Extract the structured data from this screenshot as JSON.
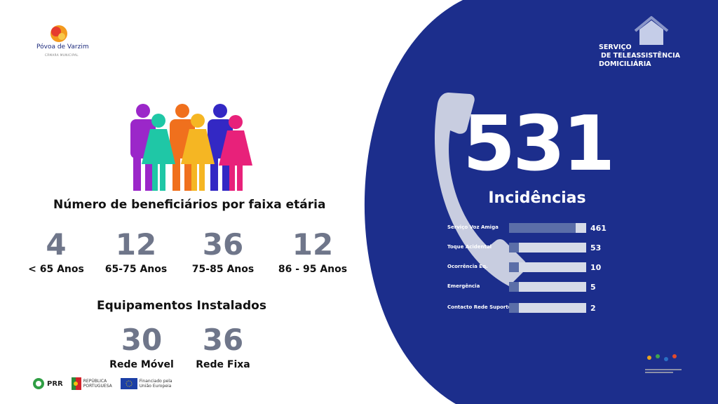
{
  "logo": {
    "name": "Póvoa de Varzim",
    "subtitle": "CÂMARA MUNICIPAL"
  },
  "service": {
    "line1": "SERVIÇO",
    "line2": "DE TELEASSISTÊNCIA",
    "line3": "DOMICILIÁRIA"
  },
  "age_section": {
    "title": "Número de beneficiários por faixa etária",
    "items": [
      {
        "value": "4",
        "label": "< 65 Anos"
      },
      {
        "value": "12",
        "label": "65-75 Anos"
      },
      {
        "value": "36",
        "label": "75-85 Anos"
      },
      {
        "value": "12",
        "label": "86 - 95 Anos"
      }
    ]
  },
  "equipment": {
    "title": "Equipamentos Instalados",
    "items": [
      {
        "value": "30",
        "label": "Rede Móvel"
      },
      {
        "value": "36",
        "label": "Rede Fixa"
      }
    ]
  },
  "incidents": {
    "total": "531",
    "caption": "Incidências",
    "bars": [
      {
        "label": "Serviço Voz Amiga",
        "value": 461
      },
      {
        "label": "Toque Acidental",
        "value": 53
      },
      {
        "label": "Ocorrência Eq.",
        "value": 10
      },
      {
        "label": "Emergência",
        "value": 5
      },
      {
        "label": "Contacto Rede Suporte",
        "value": 2
      }
    ]
  },
  "footer": {
    "prr": "PRR",
    "republica_1": "REPÚBLICA",
    "republica_2": "PORTUGUESA",
    "eu_1": "Financiado pela",
    "eu_2": "União Europeia"
  },
  "colors": {
    "blue_panel": "#1c2e8c",
    "stat_gray": "#6f768a",
    "bar_fill": "#5b6ea8",
    "bar_track": "#d6dbe8"
  }
}
